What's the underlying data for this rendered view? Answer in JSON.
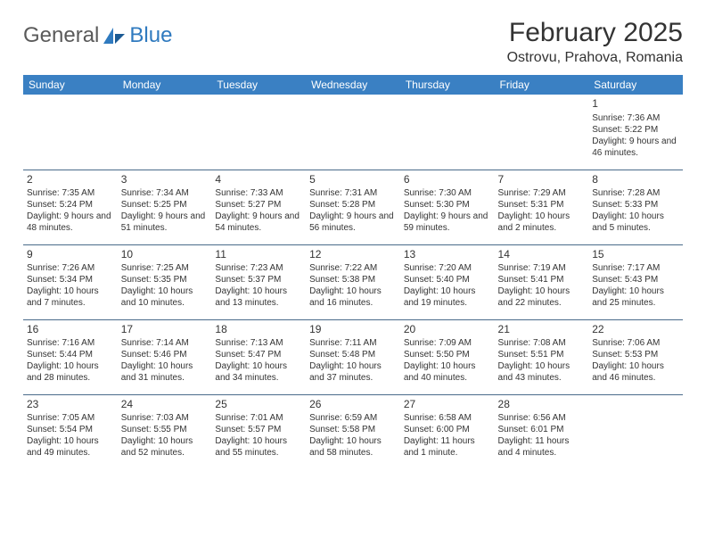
{
  "logo": {
    "text1": "General",
    "text2": "Blue"
  },
  "title": "February 2025",
  "location": "Ostrovu, Prahova, Romania",
  "colors": {
    "header_bg": "#3a80c3",
    "header_text": "#ffffff",
    "rule": "#4a6b8a",
    "body_text": "#333333",
    "logo_gray": "#5a5a5a",
    "logo_blue": "#2f7abf",
    "page_bg": "#ffffff"
  },
  "typography": {
    "title_fontsize": 30,
    "location_fontsize": 16,
    "weekday_fontsize": 12,
    "daynum_fontsize": 12,
    "cell_fontsize": 10,
    "logo_fontsize": 24
  },
  "weekdays": [
    "Sunday",
    "Monday",
    "Tuesday",
    "Wednesday",
    "Thursday",
    "Friday",
    "Saturday"
  ],
  "weeks": [
    [
      null,
      null,
      null,
      null,
      null,
      null,
      {
        "n": "1",
        "sr": "Sunrise: 7:36 AM",
        "ss": "Sunset: 5:22 PM",
        "dl": "Daylight: 9 hours and 46 minutes."
      }
    ],
    [
      {
        "n": "2",
        "sr": "Sunrise: 7:35 AM",
        "ss": "Sunset: 5:24 PM",
        "dl": "Daylight: 9 hours and 48 minutes."
      },
      {
        "n": "3",
        "sr": "Sunrise: 7:34 AM",
        "ss": "Sunset: 5:25 PM",
        "dl": "Daylight: 9 hours and 51 minutes."
      },
      {
        "n": "4",
        "sr": "Sunrise: 7:33 AM",
        "ss": "Sunset: 5:27 PM",
        "dl": "Daylight: 9 hours and 54 minutes."
      },
      {
        "n": "5",
        "sr": "Sunrise: 7:31 AM",
        "ss": "Sunset: 5:28 PM",
        "dl": "Daylight: 9 hours and 56 minutes."
      },
      {
        "n": "6",
        "sr": "Sunrise: 7:30 AM",
        "ss": "Sunset: 5:30 PM",
        "dl": "Daylight: 9 hours and 59 minutes."
      },
      {
        "n": "7",
        "sr": "Sunrise: 7:29 AM",
        "ss": "Sunset: 5:31 PM",
        "dl": "Daylight: 10 hours and 2 minutes."
      },
      {
        "n": "8",
        "sr": "Sunrise: 7:28 AM",
        "ss": "Sunset: 5:33 PM",
        "dl": "Daylight: 10 hours and 5 minutes."
      }
    ],
    [
      {
        "n": "9",
        "sr": "Sunrise: 7:26 AM",
        "ss": "Sunset: 5:34 PM",
        "dl": "Daylight: 10 hours and 7 minutes."
      },
      {
        "n": "10",
        "sr": "Sunrise: 7:25 AM",
        "ss": "Sunset: 5:35 PM",
        "dl": "Daylight: 10 hours and 10 minutes."
      },
      {
        "n": "11",
        "sr": "Sunrise: 7:23 AM",
        "ss": "Sunset: 5:37 PM",
        "dl": "Daylight: 10 hours and 13 minutes."
      },
      {
        "n": "12",
        "sr": "Sunrise: 7:22 AM",
        "ss": "Sunset: 5:38 PM",
        "dl": "Daylight: 10 hours and 16 minutes."
      },
      {
        "n": "13",
        "sr": "Sunrise: 7:20 AM",
        "ss": "Sunset: 5:40 PM",
        "dl": "Daylight: 10 hours and 19 minutes."
      },
      {
        "n": "14",
        "sr": "Sunrise: 7:19 AM",
        "ss": "Sunset: 5:41 PM",
        "dl": "Daylight: 10 hours and 22 minutes."
      },
      {
        "n": "15",
        "sr": "Sunrise: 7:17 AM",
        "ss": "Sunset: 5:43 PM",
        "dl": "Daylight: 10 hours and 25 minutes."
      }
    ],
    [
      {
        "n": "16",
        "sr": "Sunrise: 7:16 AM",
        "ss": "Sunset: 5:44 PM",
        "dl": "Daylight: 10 hours and 28 minutes."
      },
      {
        "n": "17",
        "sr": "Sunrise: 7:14 AM",
        "ss": "Sunset: 5:46 PM",
        "dl": "Daylight: 10 hours and 31 minutes."
      },
      {
        "n": "18",
        "sr": "Sunrise: 7:13 AM",
        "ss": "Sunset: 5:47 PM",
        "dl": "Daylight: 10 hours and 34 minutes."
      },
      {
        "n": "19",
        "sr": "Sunrise: 7:11 AM",
        "ss": "Sunset: 5:48 PM",
        "dl": "Daylight: 10 hours and 37 minutes."
      },
      {
        "n": "20",
        "sr": "Sunrise: 7:09 AM",
        "ss": "Sunset: 5:50 PM",
        "dl": "Daylight: 10 hours and 40 minutes."
      },
      {
        "n": "21",
        "sr": "Sunrise: 7:08 AM",
        "ss": "Sunset: 5:51 PM",
        "dl": "Daylight: 10 hours and 43 minutes."
      },
      {
        "n": "22",
        "sr": "Sunrise: 7:06 AM",
        "ss": "Sunset: 5:53 PM",
        "dl": "Daylight: 10 hours and 46 minutes."
      }
    ],
    [
      {
        "n": "23",
        "sr": "Sunrise: 7:05 AM",
        "ss": "Sunset: 5:54 PM",
        "dl": "Daylight: 10 hours and 49 minutes."
      },
      {
        "n": "24",
        "sr": "Sunrise: 7:03 AM",
        "ss": "Sunset: 5:55 PM",
        "dl": "Daylight: 10 hours and 52 minutes."
      },
      {
        "n": "25",
        "sr": "Sunrise: 7:01 AM",
        "ss": "Sunset: 5:57 PM",
        "dl": "Daylight: 10 hours and 55 minutes."
      },
      {
        "n": "26",
        "sr": "Sunrise: 6:59 AM",
        "ss": "Sunset: 5:58 PM",
        "dl": "Daylight: 10 hours and 58 minutes."
      },
      {
        "n": "27",
        "sr": "Sunrise: 6:58 AM",
        "ss": "Sunset: 6:00 PM",
        "dl": "Daylight: 11 hours and 1 minute."
      },
      {
        "n": "28",
        "sr": "Sunrise: 6:56 AM",
        "ss": "Sunset: 6:01 PM",
        "dl": "Daylight: 11 hours and 4 minutes."
      },
      null
    ]
  ]
}
